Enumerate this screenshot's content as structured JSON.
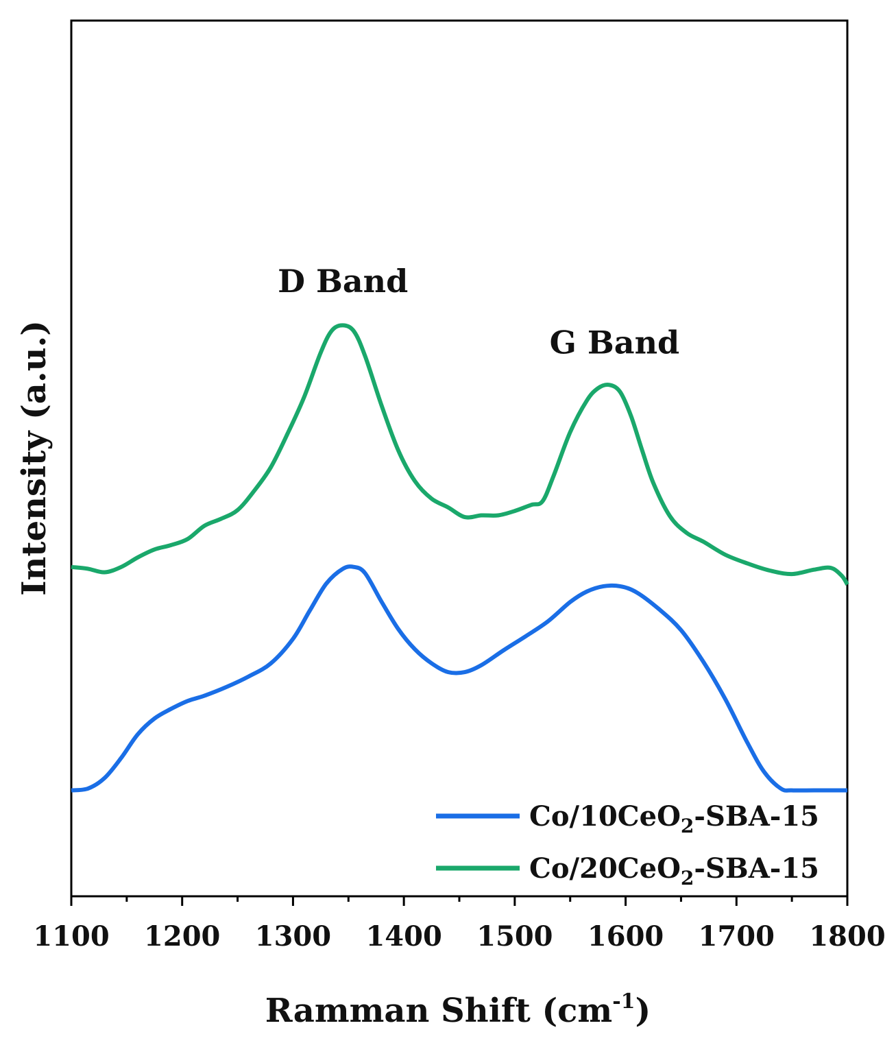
{
  "chart_data": {
    "type": "line",
    "title": "",
    "xlabel": "Ramman Shift (cm",
    "xlabel_sup": "-1",
    "xlabel_close": ")",
    "ylabel": "Intensity (a.u.)",
    "xlim": [
      1100,
      1800
    ],
    "ylim": [
      0,
      100
    ],
    "x_ticks": [
      "1100",
      "1200",
      "1300",
      "1400",
      "1500",
      "1600",
      "1700",
      "1800"
    ],
    "y_ticks_shown": false,
    "annotations": [
      {
        "text": "D Band",
        "x": 1345,
        "y": 69
      },
      {
        "text": "G Band",
        "x": 1590,
        "y": 62
      }
    ],
    "legend": {
      "position": "bottom-right",
      "entries": [
        {
          "series": "Co/10CeO2-SBA-15",
          "prefix": "Co/10CeO",
          "sub": "2",
          "suffix": "-SBA-15"
        },
        {
          "series": "Co/20CeO2-SBA-15",
          "prefix": "Co/20CeO",
          "sub": "2",
          "suffix": "-SBA-15"
        }
      ]
    },
    "series": [
      {
        "name": "Co/10CeO2-SBA-15",
        "color": "#1a6ee6",
        "x": [
          1100,
          1115,
          1130,
          1145,
          1160,
          1175,
          1190,
          1205,
          1220,
          1240,
          1260,
          1280,
          1300,
          1315,
          1330,
          1345,
          1355,
          1365,
          1380,
          1395,
          1410,
          1425,
          1440,
          1455,
          1470,
          1490,
          1510,
          1530,
          1550,
          1565,
          1580,
          1595,
          1610,
          1630,
          1650,
          1670,
          1690,
          1710,
          1725,
          1740,
          1750,
          1770,
          1790,
          1800
        ],
        "y": [
          12.1,
          12.3,
          13.5,
          15.8,
          18.5,
          20.3,
          21.4,
          22.3,
          22.9,
          23.9,
          25.1,
          26.6,
          29.4,
          32.6,
          35.7,
          37.4,
          37.6,
          36.9,
          33.6,
          30.5,
          28.2,
          26.6,
          25.6,
          25.6,
          26.4,
          28.1,
          29.7,
          31.4,
          33.6,
          34.8,
          35.4,
          35.4,
          34.7,
          32.8,
          30.4,
          26.8,
          22.5,
          17.5,
          14.2,
          12.3,
          12.1,
          12.1,
          12.1,
          12.1
        ]
      },
      {
        "name": "Co/20CeO2-SBA-15",
        "color": "#1aa86b",
        "x": [
          1100,
          1115,
          1130,
          1145,
          1160,
          1175,
          1190,
          1205,
          1220,
          1235,
          1250,
          1265,
          1280,
          1295,
          1310,
          1325,
          1335,
          1345,
          1355,
          1365,
          1380,
          1395,
          1410,
          1425,
          1440,
          1455,
          1470,
          1485,
          1500,
          1515,
          1525,
          1535,
          1550,
          1565,
          1575,
          1585,
          1595,
          1605,
          1615,
          1625,
          1640,
          1655,
          1670,
          1690,
          1710,
          1730,
          1750,
          1770,
          1785,
          1795,
          1800
        ],
        "y": [
          37.6,
          37.4,
          37.0,
          37.6,
          38.7,
          39.6,
          40.1,
          40.8,
          42.3,
          43.1,
          44.1,
          46.3,
          49.0,
          52.8,
          57.0,
          62.1,
          64.6,
          65.2,
          64.5,
          61.7,
          56.0,
          50.9,
          47.4,
          45.4,
          44.4,
          43.3,
          43.5,
          43.5,
          44.0,
          44.7,
          45.1,
          48.0,
          53.0,
          56.6,
          58.0,
          58.4,
          57.6,
          54.8,
          50.9,
          47.2,
          43.4,
          41.5,
          40.5,
          39.0,
          38.0,
          37.2,
          36.8,
          37.3,
          37.5,
          36.6,
          35.6
        ]
      }
    ]
  }
}
